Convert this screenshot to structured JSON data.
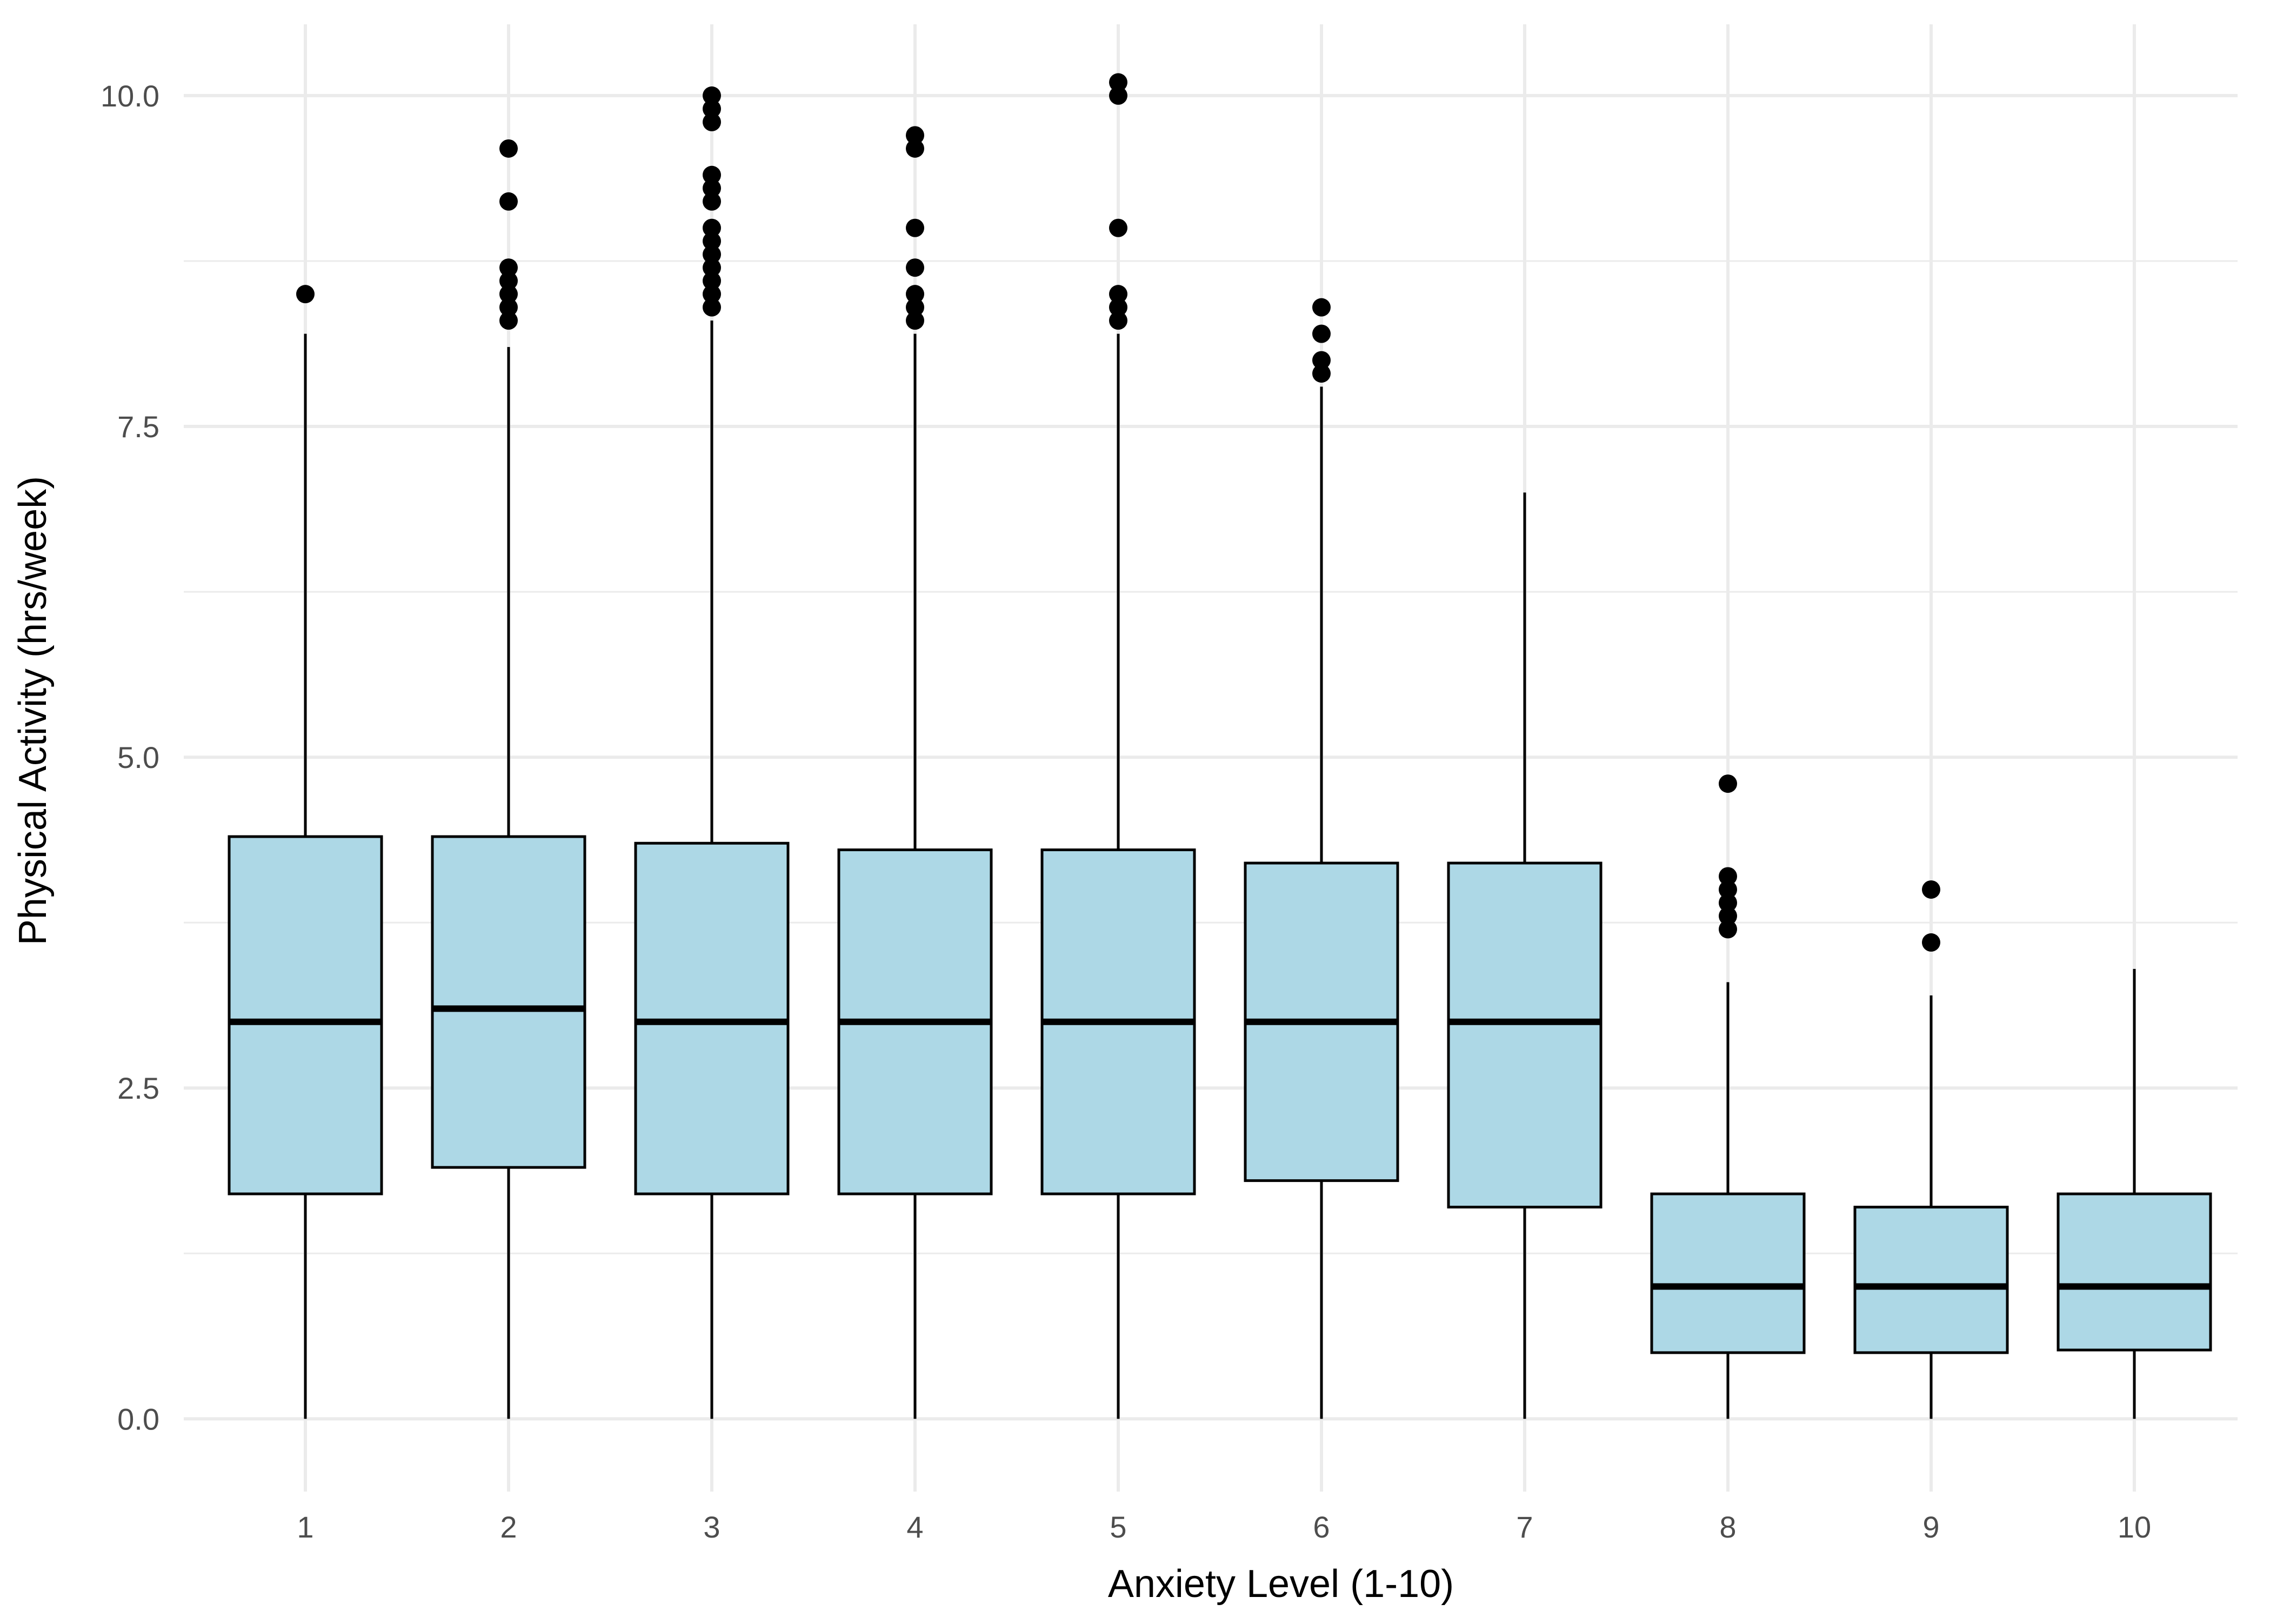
{
  "chart_data": {
    "type": "boxplot",
    "title": "",
    "xlabel": "Anxiety Level (1-10)",
    "ylabel": "Physical Activity (hrs/week)",
    "ylim": [
      -0.55,
      10.6
    ],
    "y_ticks": [
      0.0,
      2.5,
      5.0,
      7.5,
      10.0
    ],
    "y_tick_labels": [
      "0.0",
      "2.5",
      "5.0",
      "7.5",
      "10.0"
    ],
    "y_minor_ticks": [
      1.25,
      3.75,
      6.25,
      8.75
    ],
    "grid": true,
    "legend": "none",
    "colors": {
      "box_fill": "#add8e6",
      "stroke": "#000000",
      "grid": "#ebebeb"
    },
    "categories": [
      "1",
      "2",
      "3",
      "4",
      "5",
      "6",
      "7",
      "8",
      "9",
      "10"
    ],
    "boxes": [
      {
        "category": "1",
        "whisker_low": 0.0,
        "q1": 1.7,
        "median": 3.0,
        "q3": 4.4,
        "whisker_high": 8.2,
        "outliers": [
          8.5
        ]
      },
      {
        "category": "2",
        "whisker_low": 0.0,
        "q1": 1.9,
        "median": 3.1,
        "q3": 4.4,
        "whisker_high": 8.1,
        "outliers": [
          8.3,
          8.4,
          8.5,
          8.6,
          8.7,
          9.2,
          9.6
        ]
      },
      {
        "category": "3",
        "whisker_low": 0.0,
        "q1": 1.7,
        "median": 3.0,
        "q3": 4.35,
        "whisker_high": 8.3,
        "outliers": [
          8.4,
          8.5,
          8.6,
          8.7,
          8.8,
          8.9,
          9.0,
          9.2,
          9.3,
          9.4,
          9.8,
          9.9,
          10.0
        ]
      },
      {
        "category": "4",
        "whisker_low": 0.0,
        "q1": 1.7,
        "median": 3.0,
        "q3": 4.3,
        "whisker_high": 8.2,
        "outliers": [
          8.3,
          8.4,
          8.5,
          8.7,
          9.0,
          9.6,
          9.7
        ]
      },
      {
        "category": "5",
        "whisker_low": 0.0,
        "q1": 1.7,
        "median": 3.0,
        "q3": 4.3,
        "whisker_high": 8.2,
        "outliers": [
          8.3,
          8.4,
          8.5,
          9.0,
          10.0,
          10.1
        ]
      },
      {
        "category": "6",
        "whisker_low": 0.0,
        "q1": 1.8,
        "median": 3.0,
        "q3": 4.2,
        "whisker_high": 7.8,
        "outliers": [
          7.9,
          8.0,
          8.2,
          8.4
        ]
      },
      {
        "category": "7",
        "whisker_low": 0.0,
        "q1": 1.6,
        "median": 3.0,
        "q3": 4.2,
        "whisker_high": 7.0,
        "outliers": []
      },
      {
        "category": "8",
        "whisker_low": 0.0,
        "q1": 0.5,
        "median": 1.0,
        "q3": 1.7,
        "whisker_high": 3.3,
        "outliers": [
          3.7,
          3.8,
          3.9,
          4.0,
          4.1,
          4.8
        ]
      },
      {
        "category": "9",
        "whisker_low": 0.0,
        "q1": 0.5,
        "median": 1.0,
        "q3": 1.6,
        "whisker_high": 3.2,
        "outliers": [
          3.6,
          4.0
        ]
      },
      {
        "category": "10",
        "whisker_low": 0.0,
        "q1": 0.52,
        "median": 1.0,
        "q3": 1.7,
        "whisker_high": 3.4,
        "outliers": []
      }
    ]
  }
}
